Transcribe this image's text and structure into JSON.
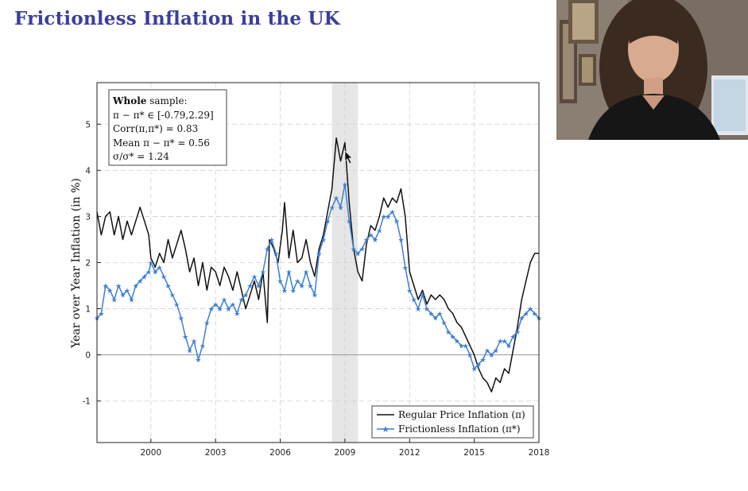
{
  "slide": {
    "title": "Frictionless Inflation in the UK"
  },
  "webcam": {
    "icon": "presenter-video-feed"
  },
  "chart_data": {
    "type": "line",
    "title": "",
    "xlabel": "",
    "ylabel": "Year over Year Inflation (in %)",
    "xlim": [
      1997.5,
      2018.0
    ],
    "ylim": [
      -1.9,
      5.9
    ],
    "x_ticks": [
      2000,
      2003,
      2006,
      2009,
      2012,
      2015,
      2018
    ],
    "x_tick_labels": [
      "2000",
      "2003",
      "2006",
      "2009",
      "2012",
      "2015",
      "2018"
    ],
    "y_ticks": [
      -1,
      0,
      1,
      2,
      3,
      4,
      5
    ],
    "y_tick_labels": [
      "-1",
      "0",
      "1",
      "2",
      "3",
      "4",
      "5"
    ],
    "grid": true,
    "legend_position": "bottom-right",
    "shaded_region": {
      "x": [
        2008.4,
        2009.6
      ],
      "color": "#e6e6e6"
    },
    "stats_box": {
      "line1_bold": "Whole",
      "line1_rest": " sample:",
      "line2": "π − π* ∈ [-0.79,2.29]",
      "line3": "Corr(π,π*) = 0.83",
      "line4": "Mean π − π* = 0.56",
      "line5": "σ/σ* = 1.24"
    },
    "series": [
      {
        "name": "Regular Price Inflation (π)",
        "color": "#111111",
        "marker": "none",
        "points": [
          [
            1997.5,
            3.1
          ],
          [
            1997.7,
            2.6
          ],
          [
            1997.9,
            3.0
          ],
          [
            1998.1,
            3.1
          ],
          [
            1998.3,
            2.6
          ],
          [
            1998.5,
            3.0
          ],
          [
            1998.7,
            2.5
          ],
          [
            1998.9,
            2.9
          ],
          [
            1999.1,
            2.6
          ],
          [
            1999.3,
            2.9
          ],
          [
            1999.5,
            3.2
          ],
          [
            1999.7,
            2.9
          ],
          [
            1999.9,
            2.6
          ],
          [
            2000.0,
            2.1
          ],
          [
            2000.2,
            1.9
          ],
          [
            2000.4,
            2.2
          ],
          [
            2000.6,
            2.0
          ],
          [
            2000.8,
            2.5
          ],
          [
            2001.0,
            2.1
          ],
          [
            2001.2,
            2.4
          ],
          [
            2001.4,
            2.7
          ],
          [
            2001.6,
            2.3
          ],
          [
            2001.8,
            1.8
          ],
          [
            2002.0,
            2.1
          ],
          [
            2002.2,
            1.5
          ],
          [
            2002.4,
            2.0
          ],
          [
            2002.6,
            1.4
          ],
          [
            2002.8,
            1.9
          ],
          [
            2003.0,
            1.8
          ],
          [
            2003.2,
            1.5
          ],
          [
            2003.4,
            1.9
          ],
          [
            2003.6,
            1.7
          ],
          [
            2003.8,
            1.4
          ],
          [
            2004.0,
            1.8
          ],
          [
            2004.2,
            1.4
          ],
          [
            2004.4,
            1.0
          ],
          [
            2004.6,
            1.3
          ],
          [
            2004.8,
            1.6
          ],
          [
            2005.0,
            1.2
          ],
          [
            2005.2,
            1.8
          ],
          [
            2005.4,
            0.7
          ],
          [
            2005.5,
            2.5
          ],
          [
            2005.7,
            2.3
          ],
          [
            2005.9,
            2.0
          ],
          [
            2006.1,
            2.7
          ],
          [
            2006.2,
            3.3
          ],
          [
            2006.4,
            2.1
          ],
          [
            2006.6,
            2.7
          ],
          [
            2006.8,
            2.0
          ],
          [
            2007.0,
            2.1
          ],
          [
            2007.2,
            2.5
          ],
          [
            2007.4,
            2.0
          ],
          [
            2007.6,
            1.7
          ],
          [
            2007.8,
            2.3
          ],
          [
            2008.0,
            2.6
          ],
          [
            2008.2,
            3.1
          ],
          [
            2008.4,
            3.6
          ],
          [
            2008.6,
            4.7
          ],
          [
            2008.8,
            4.2
          ],
          [
            2009.0,
            4.6
          ],
          [
            2009.2,
            3.3
          ],
          [
            2009.4,
            2.3
          ],
          [
            2009.6,
            1.8
          ],
          [
            2009.8,
            1.6
          ],
          [
            2010.0,
            2.4
          ],
          [
            2010.2,
            2.8
          ],
          [
            2010.4,
            2.7
          ],
          [
            2010.6,
            3.0
          ],
          [
            2010.8,
            3.4
          ],
          [
            2011.0,
            3.2
          ],
          [
            2011.2,
            3.4
          ],
          [
            2011.4,
            3.3
          ],
          [
            2011.6,
            3.6
          ],
          [
            2011.8,
            3.0
          ],
          [
            2012.0,
            1.8
          ],
          [
            2012.2,
            1.5
          ],
          [
            2012.4,
            1.2
          ],
          [
            2012.6,
            1.4
          ],
          [
            2012.8,
            1.1
          ],
          [
            2013.0,
            1.3
          ],
          [
            2013.2,
            1.2
          ],
          [
            2013.4,
            1.3
          ],
          [
            2013.6,
            1.2
          ],
          [
            2013.8,
            1.0
          ],
          [
            2014.0,
            0.9
          ],
          [
            2014.2,
            0.7
          ],
          [
            2014.4,
            0.6
          ],
          [
            2014.6,
            0.4
          ],
          [
            2014.8,
            0.2
          ],
          [
            2015.0,
            0.0
          ],
          [
            2015.2,
            -0.3
          ],
          [
            2015.4,
            -0.5
          ],
          [
            2015.6,
            -0.6
          ],
          [
            2015.8,
            -0.8
          ],
          [
            2016.0,
            -0.5
          ],
          [
            2016.2,
            -0.6
          ],
          [
            2016.4,
            -0.3
          ],
          [
            2016.6,
            -0.4
          ],
          [
            2016.8,
            0.1
          ],
          [
            2017.0,
            0.6
          ],
          [
            2017.2,
            1.2
          ],
          [
            2017.4,
            1.6
          ],
          [
            2017.6,
            2.0
          ],
          [
            2017.8,
            2.2
          ],
          [
            2018.0,
            2.2
          ]
        ]
      },
      {
        "name": "Frictionless Inflation (π*)",
        "color": "#3d7fd1",
        "marker": "star",
        "points": [
          [
            1997.5,
            0.8
          ],
          [
            1997.7,
            0.9
          ],
          [
            1997.9,
            1.5
          ],
          [
            1998.1,
            1.4
          ],
          [
            1998.3,
            1.2
          ],
          [
            1998.5,
            1.5
          ],
          [
            1998.7,
            1.3
          ],
          [
            1998.9,
            1.4
          ],
          [
            1999.1,
            1.2
          ],
          [
            1999.3,
            1.5
          ],
          [
            1999.5,
            1.6
          ],
          [
            1999.7,
            1.7
          ],
          [
            1999.9,
            1.8
          ],
          [
            2000.0,
            2.0
          ],
          [
            2000.2,
            1.8
          ],
          [
            2000.4,
            1.9
          ],
          [
            2000.6,
            1.7
          ],
          [
            2000.8,
            1.5
          ],
          [
            2001.0,
            1.3
          ],
          [
            2001.2,
            1.1
          ],
          [
            2001.4,
            0.8
          ],
          [
            2001.6,
            0.4
          ],
          [
            2001.8,
            0.1
          ],
          [
            2002.0,
            0.3
          ],
          [
            2002.2,
            -0.1
          ],
          [
            2002.4,
            0.2
          ],
          [
            2002.6,
            0.7
          ],
          [
            2002.8,
            1.0
          ],
          [
            2003.0,
            1.1
          ],
          [
            2003.2,
            1.0
          ],
          [
            2003.4,
            1.2
          ],
          [
            2003.6,
            1.0
          ],
          [
            2003.8,
            1.1
          ],
          [
            2004.0,
            0.9
          ],
          [
            2004.2,
            1.2
          ],
          [
            2004.4,
            1.3
          ],
          [
            2004.6,
            1.5
          ],
          [
            2004.8,
            1.7
          ],
          [
            2005.0,
            1.5
          ],
          [
            2005.2,
            1.8
          ],
          [
            2005.4,
            2.3
          ],
          [
            2005.6,
            2.5
          ],
          [
            2005.8,
            2.2
          ],
          [
            2006.0,
            1.6
          ],
          [
            2006.2,
            1.4
          ],
          [
            2006.4,
            1.8
          ],
          [
            2006.6,
            1.4
          ],
          [
            2006.8,
            1.6
          ],
          [
            2007.0,
            1.5
          ],
          [
            2007.2,
            1.8
          ],
          [
            2007.4,
            1.5
          ],
          [
            2007.6,
            1.3
          ],
          [
            2007.8,
            2.2
          ],
          [
            2008.0,
            2.5
          ],
          [
            2008.2,
            2.9
          ],
          [
            2008.4,
            3.2
          ],
          [
            2008.6,
            3.4
          ],
          [
            2008.8,
            3.2
          ],
          [
            2009.0,
            3.7
          ],
          [
            2009.2,
            2.9
          ],
          [
            2009.4,
            2.3
          ],
          [
            2009.6,
            2.2
          ],
          [
            2009.8,
            2.3
          ],
          [
            2010.0,
            2.5
          ],
          [
            2010.2,
            2.6
          ],
          [
            2010.4,
            2.5
          ],
          [
            2010.6,
            2.7
          ],
          [
            2010.8,
            3.0
          ],
          [
            2011.0,
            3.0
          ],
          [
            2011.2,
            3.1
          ],
          [
            2011.4,
            2.9
          ],
          [
            2011.6,
            2.5
          ],
          [
            2011.8,
            1.9
          ],
          [
            2012.0,
            1.4
          ],
          [
            2012.2,
            1.2
          ],
          [
            2012.4,
            1.0
          ],
          [
            2012.6,
            1.3
          ],
          [
            2012.8,
            1.0
          ],
          [
            2013.0,
            0.9
          ],
          [
            2013.2,
            0.8
          ],
          [
            2013.4,
            0.9
          ],
          [
            2013.6,
            0.7
          ],
          [
            2013.8,
            0.5
          ],
          [
            2014.0,
            0.4
          ],
          [
            2014.2,
            0.3
          ],
          [
            2014.4,
            0.2
          ],
          [
            2014.6,
            0.2
          ],
          [
            2014.8,
            0.0
          ],
          [
            2015.0,
            -0.3
          ],
          [
            2015.2,
            -0.2
          ],
          [
            2015.4,
            -0.1
          ],
          [
            2015.6,
            0.1
          ],
          [
            2015.8,
            0.0
          ],
          [
            2016.0,
            0.1
          ],
          [
            2016.2,
            0.3
          ],
          [
            2016.4,
            0.3
          ],
          [
            2016.6,
            0.2
          ],
          [
            2016.8,
            0.4
          ],
          [
            2017.0,
            0.5
          ],
          [
            2017.2,
            0.8
          ],
          [
            2017.4,
            0.9
          ],
          [
            2017.6,
            1.0
          ],
          [
            2017.8,
            0.9
          ],
          [
            2018.0,
            0.8
          ]
        ]
      }
    ]
  }
}
